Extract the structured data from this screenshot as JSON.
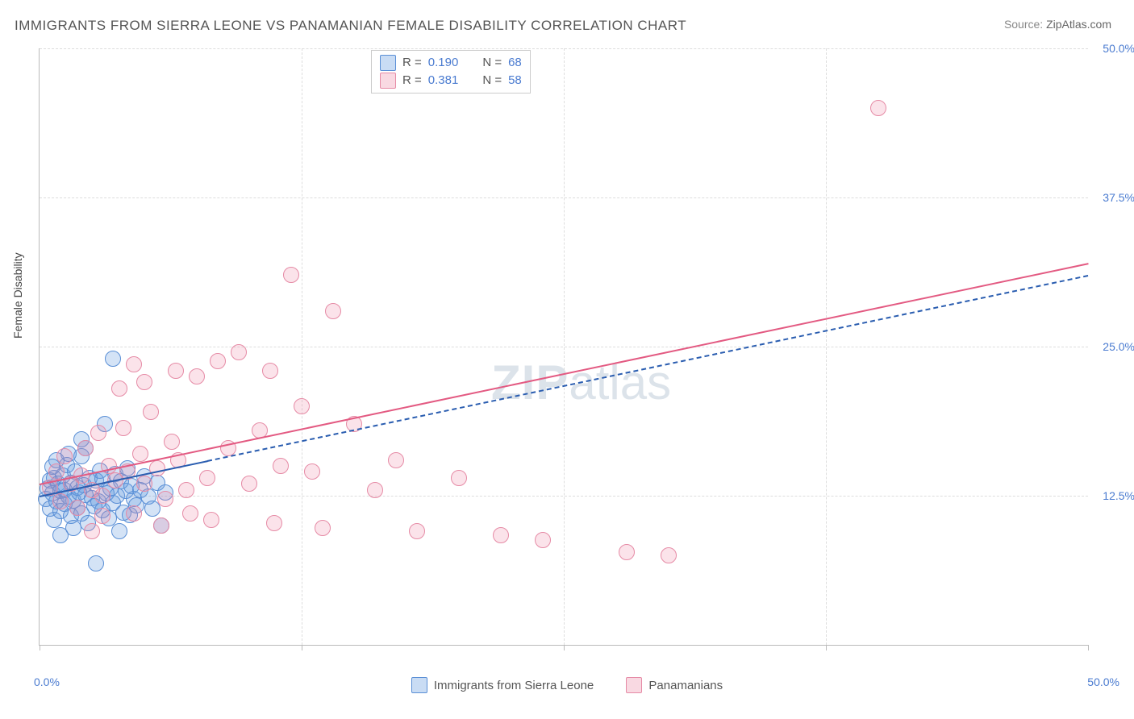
{
  "title": "IMMIGRANTS FROM SIERRA LEONE VS PANAMANIAN FEMALE DISABILITY CORRELATION CHART",
  "source_label": "Source:",
  "source_value": "ZipAtlas.com",
  "watermark_zip": "ZIP",
  "watermark_atlas": "atlas",
  "yaxis_title": "Female Disability",
  "chart": {
    "type": "scatter",
    "xlim": [
      0,
      50
    ],
    "ylim": [
      0,
      50
    ],
    "x_ticks": [
      0,
      12.5,
      25,
      37.5,
      50
    ],
    "y_ticks": [
      12.5,
      25,
      37.5,
      50
    ],
    "y_tick_labels": [
      "12.5%",
      "25.0%",
      "37.5%",
      "50.0%"
    ],
    "x_min_label": "0.0%",
    "x_max_label": "50.0%",
    "background_color": "#ffffff",
    "grid_color": "#dddddd",
    "axis_color": "#bbbbbb",
    "tick_label_color": "#4a7bd0",
    "marker_radius": 9,
    "series": [
      {
        "name": "Immigrants from Sierra Leone",
        "color_fill": "rgba(99,155,223,0.28)",
        "color_stroke": "#5a8fd6",
        "r_value": "0.190",
        "n_value": "68",
        "trend": {
          "x1": 0,
          "y1": 12.5,
          "x2": 50,
          "y2": 31.0,
          "dash": true,
          "solid_until_x": 8,
          "stroke": "#2a5db0",
          "width": 2
        },
        "points": [
          [
            0.3,
            12.2
          ],
          [
            0.4,
            13.1
          ],
          [
            0.5,
            11.4
          ],
          [
            0.5,
            13.8
          ],
          [
            0.6,
            12.7
          ],
          [
            0.7,
            10.5
          ],
          [
            0.7,
            14.0
          ],
          [
            0.8,
            12.0
          ],
          [
            0.9,
            13.5
          ],
          [
            1.0,
            11.2
          ],
          [
            1.0,
            12.9
          ],
          [
            1.1,
            14.2
          ],
          [
            1.2,
            11.8
          ],
          [
            1.2,
            13.0
          ],
          [
            1.3,
            15.1
          ],
          [
            1.4,
            12.4
          ],
          [
            1.5,
            10.8
          ],
          [
            1.5,
            13.6
          ],
          [
            1.6,
            12.1
          ],
          [
            1.7,
            14.5
          ],
          [
            1.8,
            11.5
          ],
          [
            1.8,
            13.2
          ],
          [
            1.9,
            12.8
          ],
          [
            2.0,
            15.8
          ],
          [
            2.0,
            11.0
          ],
          [
            2.1,
            13.4
          ],
          [
            2.2,
            12.6
          ],
          [
            2.3,
            10.2
          ],
          [
            2.4,
            14.0
          ],
          [
            2.5,
            12.3
          ],
          [
            2.6,
            11.6
          ],
          [
            2.7,
            13.8
          ],
          [
            2.8,
            12.0
          ],
          [
            2.9,
            14.6
          ],
          [
            3.0,
            11.3
          ],
          [
            3.0,
            13.9
          ],
          [
            3.1,
            18.5
          ],
          [
            3.2,
            12.7
          ],
          [
            3.3,
            10.6
          ],
          [
            3.4,
            13.1
          ],
          [
            3.5,
            11.9
          ],
          [
            3.6,
            14.3
          ],
          [
            3.7,
            12.5
          ],
          [
            3.8,
            9.5
          ],
          [
            3.9,
            13.7
          ],
          [
            4.0,
            11.1
          ],
          [
            4.1,
            12.9
          ],
          [
            4.2,
            14.8
          ],
          [
            4.3,
            10.9
          ],
          [
            4.4,
            13.3
          ],
          [
            4.5,
            12.2
          ],
          [
            4.6,
            11.7
          ],
          [
            4.8,
            13.0
          ],
          [
            5.0,
            14.1
          ],
          [
            5.2,
            12.4
          ],
          [
            5.4,
            11.4
          ],
          [
            5.6,
            13.6
          ],
          [
            5.8,
            10.0
          ],
          [
            6.0,
            12.8
          ],
          [
            2.7,
            6.8
          ],
          [
            3.5,
            24.0
          ],
          [
            2.0,
            17.2
          ],
          [
            1.0,
            9.2
          ],
          [
            1.4,
            16.0
          ],
          [
            0.8,
            15.5
          ],
          [
            1.6,
            9.8
          ],
          [
            2.2,
            16.5
          ],
          [
            0.6,
            14.9
          ]
        ]
      },
      {
        "name": "Panamanians",
        "color_fill": "rgba(236,128,160,0.22)",
        "color_stroke": "#e68ba6",
        "r_value": "0.381",
        "n_value": "58",
        "trend": {
          "x1": 0,
          "y1": 13.5,
          "x2": 50,
          "y2": 32.0,
          "dash": false,
          "stroke": "#e35a82",
          "width": 2.5
        },
        "points": [
          [
            0.5,
            13.2
          ],
          [
            0.8,
            14.5
          ],
          [
            1.0,
            12.0
          ],
          [
            1.2,
            15.8
          ],
          [
            1.5,
            13.5
          ],
          [
            1.8,
            11.5
          ],
          [
            2.0,
            14.2
          ],
          [
            2.2,
            16.5
          ],
          [
            2.5,
            13.0
          ],
          [
            2.8,
            17.8
          ],
          [
            3.0,
            12.5
          ],
          [
            3.3,
            15.0
          ],
          [
            3.6,
            13.8
          ],
          [
            4.0,
            18.2
          ],
          [
            4.2,
            14.5
          ],
          [
            4.5,
            11.0
          ],
          [
            4.8,
            16.0
          ],
          [
            5.0,
            13.5
          ],
          [
            5.3,
            19.5
          ],
          [
            5.6,
            14.8
          ],
          [
            6.0,
            12.2
          ],
          [
            6.3,
            17.0
          ],
          [
            6.6,
            15.5
          ],
          [
            7.0,
            13.0
          ],
          [
            7.5,
            22.5
          ],
          [
            8.0,
            14.0
          ],
          [
            8.5,
            23.8
          ],
          [
            9.0,
            16.5
          ],
          [
            9.5,
            24.5
          ],
          [
            10.0,
            13.5
          ],
          [
            10.5,
            18.0
          ],
          [
            11.0,
            23.0
          ],
          [
            11.5,
            15.0
          ],
          [
            12.0,
            31.0
          ],
          [
            12.5,
            20.0
          ],
          [
            13.0,
            14.5
          ],
          [
            14.0,
            28.0
          ],
          [
            15.0,
            18.5
          ],
          [
            16.0,
            13.0
          ],
          [
            17.0,
            15.5
          ],
          [
            18.0,
            9.5
          ],
          [
            20.0,
            14.0
          ],
          [
            22.0,
            9.2
          ],
          [
            24.0,
            8.8
          ],
          [
            28.0,
            7.8
          ],
          [
            30.0,
            7.5
          ],
          [
            4.5,
            23.5
          ],
          [
            7.2,
            11.0
          ],
          [
            3.0,
            10.8
          ],
          [
            2.5,
            9.5
          ],
          [
            5.8,
            10.0
          ],
          [
            8.2,
            10.5
          ],
          [
            6.5,
            23.0
          ],
          [
            5.0,
            22.0
          ],
          [
            3.8,
            21.5
          ],
          [
            11.2,
            10.2
          ],
          [
            40.0,
            45.0
          ],
          [
            13.5,
            9.8
          ]
        ]
      }
    ]
  },
  "stat_legend": {
    "r_label": "R =",
    "n_label": "N ="
  },
  "bottom_legend": {
    "series1": "Immigrants from Sierra Leone",
    "series2": "Panamanians"
  }
}
